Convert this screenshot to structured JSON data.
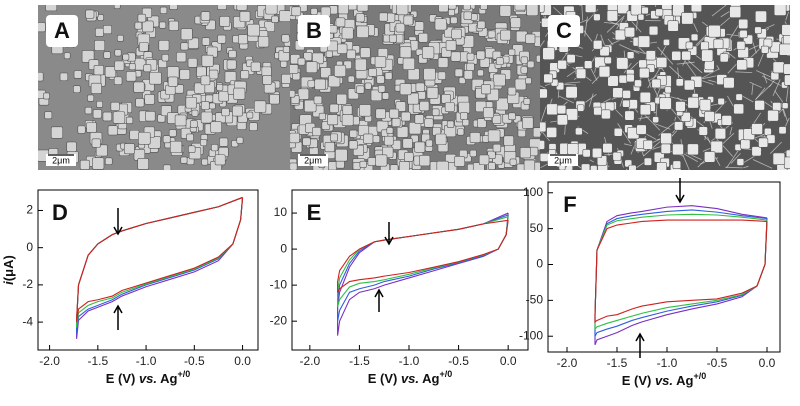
{
  "images": [
    {
      "label": "A",
      "scale": "2μm"
    },
    {
      "label": "B",
      "scale": "2μm"
    },
    {
      "label": "C",
      "scale": "2μm"
    }
  ],
  "chart_data": [
    {
      "type": "line",
      "panel": "D",
      "y_label": [
        "i",
        "(μA)"
      ],
      "x_label": [
        "E (V) ",
        "vs.",
        " Ag",
        "+/0"
      ],
      "xlim": [
        -2.12,
        0.16
      ],
      "ylim": [
        -5.5,
        3.1
      ],
      "xticks": [
        {
          "value": -2.0,
          "label": "-2.0"
        },
        {
          "value": -1.5,
          "label": "-1.5"
        },
        {
          "value": -1.0,
          "label": "-1.0"
        },
        {
          "value": -0.5,
          "label": "-0.5"
        },
        {
          "value": 0.0,
          "label": "0.0"
        }
      ],
      "yticks": [
        2,
        0,
        -2,
        -4
      ],
      "x": [
        0,
        -0.25,
        -0.5,
        -0.75,
        -1.0,
        -1.25,
        -1.35,
        -1.5,
        -1.6,
        -1.7,
        -1.72,
        -1.72,
        -1.7,
        -1.6,
        -1.5,
        -1.35,
        -1.25,
        -1.0,
        -0.75,
        -0.5,
        -0.25,
        -0.1,
        -0.02,
        0
      ],
      "series": [
        {
          "color": "#7b2fbf",
          "values": [
            2.7,
            2.2,
            1.9,
            1.6,
            1.3,
            0.9,
            0.7,
            0.2,
            -0.4,
            -2.0,
            -4.0,
            -4.9,
            -3.9,
            -3.4,
            -3.2,
            -2.9,
            -2.6,
            -2.1,
            -1.7,
            -1.3,
            -0.7,
            0.2,
            1.5,
            2.7
          ]
        },
        {
          "color": "#2f5fe0",
          "values": [
            2.7,
            2.2,
            1.9,
            1.6,
            1.3,
            0.9,
            0.7,
            0.2,
            -0.4,
            -2.0,
            -3.9,
            -4.6,
            -3.7,
            -3.3,
            -3.1,
            -2.8,
            -2.5,
            -2.0,
            -1.6,
            -1.2,
            -0.6,
            0.2,
            1.5,
            2.7
          ]
        },
        {
          "color": "#2fc040",
          "values": [
            2.7,
            2.2,
            1.9,
            1.6,
            1.3,
            0.9,
            0.7,
            0.2,
            -0.4,
            -2.0,
            -3.9,
            -4.3,
            -3.5,
            -3.1,
            -2.9,
            -2.7,
            -2.4,
            -1.95,
            -1.55,
            -1.15,
            -0.55,
            0.2,
            1.5,
            2.7
          ]
        },
        {
          "color": "#d02020",
          "values": [
            2.7,
            2.2,
            1.9,
            1.6,
            1.3,
            0.9,
            0.7,
            0.2,
            -0.4,
            -2.0,
            -3.8,
            -4.0,
            -3.3,
            -2.9,
            -2.8,
            -2.6,
            -2.3,
            -1.9,
            -1.5,
            -1.1,
            -0.5,
            0.2,
            1.5,
            2.7
          ]
        }
      ]
    },
    {
      "type": "line",
      "panel": "E",
      "x_label": [
        "E (V) ",
        "vs.",
        " Ag",
        "+/0"
      ],
      "xlim": [
        -2.18,
        0.2
      ],
      "ylim": [
        -28,
        16.4
      ],
      "xticks": [
        {
          "value": -2.0,
          "label": "-2.0"
        },
        {
          "value": -1.5,
          "label": "-1.5"
        },
        {
          "value": -1.0,
          "label": "-1.0"
        },
        {
          "value": -0.5,
          "label": "-0.5"
        },
        {
          "value": 0.0,
          "label": "0.0"
        }
      ],
      "yticks": [
        10,
        0,
        -10,
        -20
      ],
      "x": [
        0,
        -0.25,
        -0.5,
        -0.75,
        -1.0,
        -1.25,
        -1.35,
        -1.5,
        -1.6,
        -1.7,
        -1.72,
        -1.72,
        -1.7,
        -1.6,
        -1.5,
        -1.35,
        -1.25,
        -1.0,
        -0.75,
        -0.5,
        -0.25,
        -0.1,
        -0.02,
        0
      ],
      "series": [
        {
          "color": "#7b2fbf",
          "values": [
            10,
            7,
            5.5,
            4.5,
            3.5,
            2.5,
            2,
            -1,
            -5,
            -12,
            -16,
            -24,
            -20,
            -14,
            -12,
            -11,
            -10,
            -8,
            -6,
            -4,
            -2,
            0,
            4,
            10
          ]
        },
        {
          "color": "#2f5fe0",
          "values": [
            9.5,
            7,
            5.5,
            4.5,
            3.5,
            2.5,
            2,
            -0.5,
            -4,
            -10,
            -14,
            -20,
            -17,
            -12,
            -11,
            -10,
            -9,
            -7.5,
            -5.5,
            -3.8,
            -1.8,
            0,
            4,
            9.5
          ]
        },
        {
          "color": "#2fc040",
          "values": [
            9,
            7,
            5.5,
            4.5,
            3.5,
            2.5,
            2,
            0,
            -3,
            -8,
            -12,
            -16,
            -14,
            -10.5,
            -9.5,
            -9,
            -8.5,
            -7,
            -5.2,
            -3.6,
            -1.6,
            0,
            4,
            9
          ]
        },
        {
          "color": "#d02020",
          "values": [
            8,
            7,
            5.5,
            4.5,
            3.5,
            2.5,
            2,
            0,
            -2,
            -6,
            -9,
            -12,
            -11,
            -9,
            -8.5,
            -8,
            -7.5,
            -6.5,
            -5,
            -3.5,
            -1.5,
            0,
            4,
            8
          ]
        }
      ]
    },
    {
      "type": "line",
      "panel": "F",
      "x_label": [
        "E (V) ",
        "vs.",
        " Ag",
        "+/0"
      ],
      "xlim": [
        -2.19,
        0.13
      ],
      "ylim": [
        -122,
        115
      ],
      "xticks": [
        {
          "value": -2.0,
          "label": "-2.0"
        },
        {
          "value": -1.5,
          "label": "-1.5"
        },
        {
          "value": -1.0,
          "label": "-1.0"
        },
        {
          "value": -0.5,
          "label": "-0.5"
        },
        {
          "value": 0.0,
          "label": "0.0"
        }
      ],
      "yticks": [
        100,
        50,
        0,
        -50,
        -100
      ],
      "x": [
        0,
        -0.25,
        -0.5,
        -0.75,
        -1.0,
        -1.25,
        -1.35,
        -1.5,
        -1.6,
        -1.7,
        -1.72,
        -1.72,
        -1.7,
        -1.6,
        -1.5,
        -1.35,
        -1.25,
        -1.0,
        -0.75,
        -0.5,
        -0.25,
        -0.1,
        -0.02,
        0
      ],
      "series": [
        {
          "color": "#7b2fbf",
          "values": [
            65,
            70,
            78,
            82,
            80,
            74,
            72,
            68,
            60,
            20,
            -70,
            -112,
            -105,
            -100,
            -95,
            -85,
            -80,
            -70,
            -62,
            -55,
            -45,
            -30,
            0,
            65
          ]
        },
        {
          "color": "#2f5fe0",
          "values": [
            64,
            68,
            73,
            76,
            74,
            70,
            68,
            64,
            57,
            20,
            -70,
            -100,
            -95,
            -90,
            -86,
            -78,
            -74,
            -65,
            -58,
            -52,
            -43,
            -30,
            0,
            64
          ]
        },
        {
          "color": "#2fc040",
          "values": [
            62,
            66,
            69,
            70,
            69,
            66,
            64,
            61,
            55,
            20,
            -70,
            -90,
            -87,
            -82,
            -78,
            -72,
            -68,
            -60,
            -55,
            -50,
            -42,
            -30,
            0,
            62
          ]
        },
        {
          "color": "#d02020",
          "values": [
            60,
            62,
            62,
            62,
            62,
            60,
            58,
            55,
            50,
            20,
            -70,
            -80,
            -78,
            -72,
            -70,
            -62,
            -58,
            -52,
            -50,
            -48,
            -40,
            -30,
            0,
            60
          ]
        }
      ]
    }
  ]
}
